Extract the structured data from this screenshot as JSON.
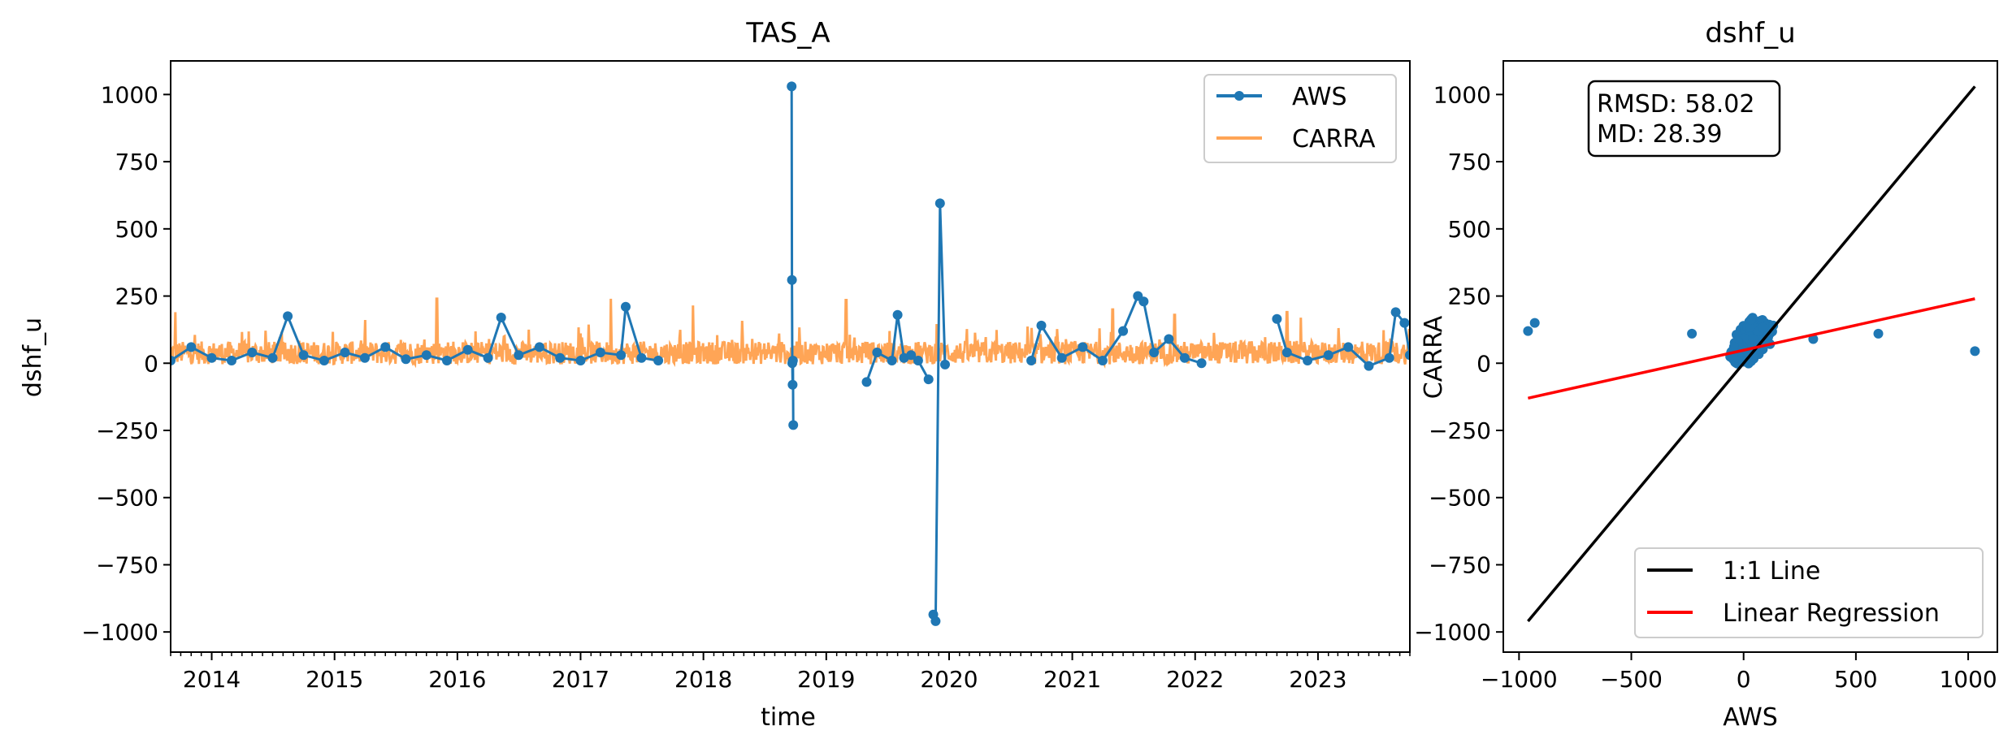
{
  "chart_data": [
    {
      "type": "line",
      "title": "TAS_A",
      "xlabel": "time",
      "ylabel": "dshf_u",
      "x_range": [
        "2013-09-01",
        "2023-10-01"
      ],
      "ylim": [
        -1075,
        1125
      ],
      "x_ticks": [
        {
          "date": "2014-01-01",
          "label": "2014"
        },
        {
          "date": "2015-01-01",
          "label": "2015"
        },
        {
          "date": "2016-01-01",
          "label": "2016"
        },
        {
          "date": "2017-01-01",
          "label": "2017"
        },
        {
          "date": "2018-01-01",
          "label": "2018"
        },
        {
          "date": "2019-01-01",
          "label": "2019"
        },
        {
          "date": "2020-01-01",
          "label": "2020"
        },
        {
          "date": "2021-01-01",
          "label": "2021"
        },
        {
          "date": "2022-01-01",
          "label": "2022"
        },
        {
          "date": "2023-01-01",
          "label": "2023"
        }
      ],
      "y_ticks": [
        {
          "value": 1000,
          "label": "1000"
        },
        {
          "value": 750,
          "label": "750"
        },
        {
          "value": 500,
          "label": "500"
        },
        {
          "value": 250,
          "label": "250"
        },
        {
          "value": 0,
          "label": "0"
        },
        {
          "value": -250,
          "label": "−250"
        },
        {
          "value": -500,
          "label": "−500"
        },
        {
          "value": -750,
          "label": "−750"
        },
        {
          "value": -1000,
          "label": "−1000"
        }
      ],
      "legend_position": "top-right",
      "grid": false,
      "series": [
        {
          "name": "AWS",
          "color": "#1f77b4",
          "marker": "circle",
          "segments": [
            {
              "x": [
                "2013-09-01",
                "2013-11-01",
                "2014-01-01",
                "2014-03-01",
                "2014-05-01",
                "2014-07-01",
                "2014-08-15",
                "2014-10-01",
                "2014-12-01",
                "2015-02-01",
                "2015-04-01",
                "2015-06-01",
                "2015-08-01",
                "2015-10-01",
                "2015-12-01",
                "2016-02-01",
                "2016-04-01",
                "2016-05-10",
                "2016-07-01",
                "2016-09-01",
                "2016-11-01",
                "2017-01-01",
                "2017-03-01",
                "2017-05-01",
                "2017-05-15",
                "2017-07-01",
                "2017-08-20"
              ],
              "y": [
                10,
                60,
                20,
                10,
                40,
                20,
                175,
                30,
                10,
                40,
                20,
                60,
                15,
                30,
                10,
                50,
                20,
                170,
                30,
                60,
                20,
                10,
                40,
                30,
                210,
                20,
                10
              ]
            },
            {
              "x": [
                "2018-09-20",
                "2018-09-21",
                "2018-09-22",
                "2018-09-23",
                "2018-09-24",
                "2018-09-25"
              ],
              "y": [
                1030,
                310,
                0,
                -80,
                10,
                -230
              ]
            },
            {
              "x": [
                "2019-05-01",
                "2019-06-01",
                "2019-07-15",
                "2019-08-01",
                "2019-08-20",
                "2019-09-10",
                "2019-10-01",
                "2019-11-01"
              ],
              "y": [
                -70,
                40,
                10,
                180,
                20,
                30,
                10,
                -60
              ]
            },
            {
              "x": [
                "2019-11-15",
                "2019-11-22",
                "2019-12-05",
                "2019-12-20"
              ],
              "y": [
                -935,
                -960,
                595,
                -5
              ]
            },
            {
              "x": [
                "2020-09-01",
                "2020-10-01",
                "2020-12-01",
                "2021-02-01",
                "2021-04-01",
                "2021-06-01",
                "2021-07-15",
                "2021-08-01",
                "2021-09-01",
                "2021-10-15",
                "2021-12-01",
                "2022-01-20"
              ],
              "y": [
                10,
                140,
                20,
                60,
                10,
                120,
                250,
                230,
                40,
                90,
                20,
                0
              ]
            },
            {
              "x": [
                "2022-09-01",
                "2022-10-01",
                "2022-12-01",
                "2023-02-01",
                "2023-04-01",
                "2023-06-01",
                "2023-08-01",
                "2023-08-20",
                "2023-09-15",
                "2023-10-01"
              ],
              "y": [
                165,
                40,
                10,
                30,
                60,
                -10,
                20,
                190,
                150,
                30
              ]
            }
          ]
        },
        {
          "name": "CARRA",
          "color": "#ff7f0e",
          "x_range": [
            "2013-09-01",
            "2023-10-01"
          ],
          "baseline": 30,
          "amplitude": 85,
          "peaks": [
            {
              "x": "2013-09-15",
              "y": 190
            },
            {
              "x": "2015-11-01",
              "y": 240
            },
            {
              "x": "2017-04-01",
              "y": 240
            },
            {
              "x": "2017-12-01",
              "y": 215
            },
            {
              "x": "2019-03-01",
              "y": 235
            },
            {
              "x": "2021-05-01",
              "y": 200
            },
            {
              "x": "2021-11-01",
              "y": 180
            },
            {
              "x": "2022-10-01",
              "y": 190
            }
          ]
        }
      ]
    },
    {
      "type": "scatter",
      "title": "dshf_u",
      "xlabel": "AWS",
      "ylabel": "CARRA",
      "xlim": [
        -1070,
        1130
      ],
      "ylim": [
        -1075,
        1125
      ],
      "x_ticks": [
        {
          "value": -1000,
          "label": "−1000"
        },
        {
          "value": -500,
          "label": "−500"
        },
        {
          "value": 0,
          "label": "0"
        },
        {
          "value": 500,
          "label": "500"
        },
        {
          "value": 1000,
          "label": "1000"
        }
      ],
      "y_ticks": [
        {
          "value": 1000,
          "label": "1000"
        },
        {
          "value": 750,
          "label": "750"
        },
        {
          "value": 500,
          "label": "500"
        },
        {
          "value": 250,
          "label": "250"
        },
        {
          "value": 0,
          "label": "0"
        },
        {
          "value": -250,
          "label": "−250"
        },
        {
          "value": -500,
          "label": "−500"
        },
        {
          "value": -750,
          "label": "−750"
        },
        {
          "value": -1000,
          "label": "−1000"
        }
      ],
      "annotation": {
        "rmsd": "RMSD: 58.02",
        "md": "MD: 28.39"
      },
      "legend_position": "bottom-right",
      "grid": false,
      "points": {
        "color": "#1f77b4",
        "outliers": [
          [
            -960,
            120
          ],
          [
            -930,
            150
          ],
          [
            -230,
            110
          ],
          [
            310,
            90
          ],
          [
            600,
            110
          ],
          [
            1030,
            45
          ]
        ],
        "cluster": {
          "x_center": 30,
          "y_center": 80,
          "x_spread": 110,
          "y_spread": 90,
          "count": 260
        }
      },
      "lines": [
        {
          "name": "1:1 Line",
          "color": "#000000",
          "from": [
            -960,
            -960
          ],
          "to": [
            1030,
            1030
          ]
        },
        {
          "name": "Linear Regression",
          "color": "#ff0000",
          "from": [
            -960,
            -130
          ],
          "to": [
            1030,
            240
          ]
        }
      ]
    }
  ]
}
